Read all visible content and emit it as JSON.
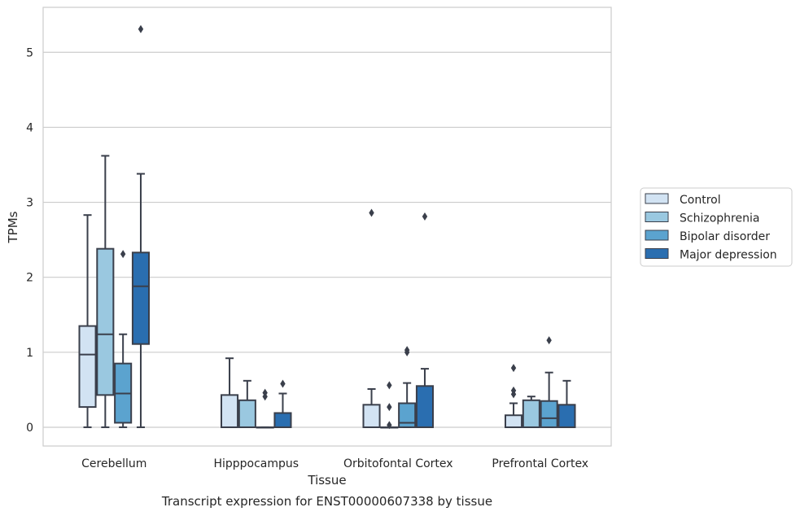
{
  "chart_data": {
    "type": "box",
    "caption": "Transcript expression for ENST00000607338 by tissue",
    "xlabel": "Tissue",
    "ylabel": "TPMs",
    "ylim": [
      -0.25,
      5.6
    ],
    "yticks": [
      0,
      1,
      2,
      3,
      4,
      5
    ],
    "grid": "horizontal",
    "legend_position": "right",
    "categories": [
      "Cerebellum",
      "Hipppocampus",
      "Orbitofontal Cortex",
      "Prefrontal Cortex"
    ],
    "series": [
      {
        "name": "Control",
        "color": "#d2e3f3",
        "boxes": [
          {
            "whisker_low": 0.0,
            "q1": 0.27,
            "median": 0.97,
            "q3": 1.35,
            "whisker_high": 2.83,
            "outliers": []
          },
          {
            "whisker_low": 0.0,
            "q1": 0.0,
            "median": 0.0,
            "q3": 0.43,
            "whisker_high": 0.92,
            "outliers": []
          },
          {
            "whisker_low": 0.0,
            "q1": 0.0,
            "median": 0.0,
            "q3": 0.3,
            "whisker_high": 0.51,
            "outliers": [
              2.86
            ]
          },
          {
            "whisker_low": 0.0,
            "q1": 0.0,
            "median": 0.0,
            "q3": 0.16,
            "whisker_high": 0.32,
            "outliers": [
              0.44,
              0.49,
              0.79
            ]
          }
        ]
      },
      {
        "name": "Schizophrenia",
        "color": "#9ac8e0",
        "boxes": [
          {
            "whisker_low": 0.0,
            "q1": 0.43,
            "median": 1.24,
            "q3": 2.38,
            "whisker_high": 3.62,
            "outliers": []
          },
          {
            "whisker_low": 0.0,
            "q1": 0.0,
            "median": 0.0,
            "q3": 0.36,
            "whisker_high": 0.62,
            "outliers": []
          },
          {
            "whisker_low": 0.0,
            "q1": 0.0,
            "median": 0.0,
            "q3": 0.0,
            "whisker_high": 0.0,
            "outliers": [
              0.03,
              0.27,
              0.56
            ]
          },
          {
            "whisker_low": 0.0,
            "q1": 0.0,
            "median": 0.0,
            "q3": 0.36,
            "whisker_high": 0.41,
            "outliers": []
          }
        ]
      },
      {
        "name": "Bipolar disorder",
        "color": "#5ba3cf",
        "boxes": [
          {
            "whisker_low": 0.0,
            "q1": 0.06,
            "median": 0.45,
            "q3": 0.85,
            "whisker_high": 1.24,
            "outliers": [
              2.31
            ]
          },
          {
            "whisker_low": 0.0,
            "q1": 0.0,
            "median": 0.0,
            "q3": 0.0,
            "whisker_high": 0.0,
            "outliers": [
              0.41,
              0.46
            ]
          },
          {
            "whisker_low": 0.0,
            "q1": 0.0,
            "median": 0.06,
            "q3": 0.32,
            "whisker_high": 0.59,
            "outliers": [
              1.0,
              1.03
            ]
          },
          {
            "whisker_low": 0.0,
            "q1": 0.0,
            "median": 0.12,
            "q3": 0.35,
            "whisker_high": 0.73,
            "outliers": [
              1.16
            ]
          }
        ]
      },
      {
        "name": "Major depression",
        "color": "#2a6eb0",
        "boxes": [
          {
            "whisker_low": 0.0,
            "q1": 1.11,
            "median": 1.88,
            "q3": 2.33,
            "whisker_high": 3.38,
            "outliers": [
              5.31
            ]
          },
          {
            "whisker_low": 0.0,
            "q1": 0.0,
            "median": 0.0,
            "q3": 0.19,
            "whisker_high": 0.45,
            "outliers": [
              0.58
            ]
          },
          {
            "whisker_low": 0.0,
            "q1": 0.0,
            "median": 0.0,
            "q3": 0.55,
            "whisker_high": 0.78,
            "outliers": [
              2.81
            ]
          },
          {
            "whisker_low": 0.0,
            "q1": 0.0,
            "median": 0.0,
            "q3": 0.3,
            "whisker_high": 0.62,
            "outliers": []
          }
        ]
      }
    ]
  }
}
